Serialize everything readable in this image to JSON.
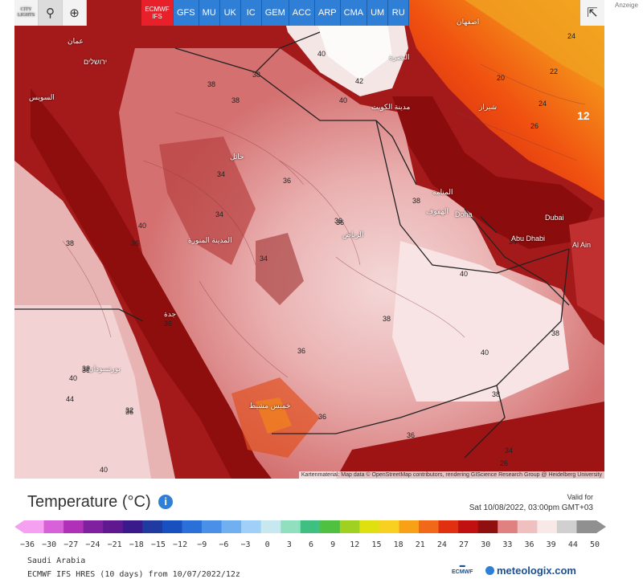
{
  "toolbar": {
    "reset_icon": "refresh-icon",
    "location_icon": "map-pin-icon",
    "zoom_icon": "zoom-icon",
    "city_line1": "CITY",
    "city_line2": "LIGHTS",
    "share_icon": "share-icon"
  },
  "models": [
    {
      "label": "ECMWF",
      "sub": "IFS",
      "selected": true
    },
    {
      "label": "GFS"
    },
    {
      "label": "MU"
    },
    {
      "label": "UK"
    },
    {
      "label": "IC"
    },
    {
      "label": "GEM"
    },
    {
      "label": "ACC"
    },
    {
      "label": "ARP"
    },
    {
      "label": "CMA"
    },
    {
      "label": "UM"
    },
    {
      "label": "RU"
    }
  ],
  "ad_label": "Anzeige",
  "map": {
    "credit": "Kartenmaterial: Map data © OpenStreetMap contributors, rendering GIScience Research Group @ Heidelberg University",
    "cities": {
      "doha": "Doha",
      "dubai": "Dubai",
      "abu_dhabi": "Abu Dhabi",
      "al_ain": "Al Ain",
      "riyadh": "الرياض",
      "medina": "المدينة المنورة",
      "kuwait": "مدينة الكويت",
      "hail": "حائل",
      "manama": "المنامة",
      "hofuf": "الهفوف",
      "basra": "البصرة",
      "shiraz": "شيراز",
      "isfahan": "اصفهان",
      "amman": "عمان",
      "jerusalem": "ירושלים",
      "suez": "السويس",
      "port_sudan": "بورتسودان",
      "jeddah": "جدة",
      "khamis": "خميس مشيط"
    },
    "isotherm_labels": [
      "38",
      "38",
      "36",
      "36",
      "34",
      "34",
      "36",
      "38",
      "40",
      "40",
      "38",
      "40",
      "38",
      "36",
      "34",
      "36",
      "38",
      "40",
      "42",
      "40",
      "38",
      "36",
      "26",
      "24",
      "22",
      "20",
      "12",
      "34",
      "40",
      "38",
      "36",
      "34",
      "32",
      "36",
      "38",
      "38",
      "40",
      "36",
      "44",
      "24",
      "26"
    ]
  },
  "legend": {
    "title": "Temperature",
    "unit": "(°C)",
    "info_icon": "info-icon",
    "valid_for_label": "Valid for",
    "valid_for_value": "Sat 10/08/2022, 03:00pm GMT+03",
    "ticks": [
      "−36",
      "−30",
      "−27",
      "−24",
      "−21",
      "−18",
      "−15",
      "−12",
      "−9",
      "−6",
      "−3",
      "0",
      "3",
      "6",
      "9",
      "12",
      "15",
      "18",
      "21",
      "24",
      "27",
      "30",
      "33",
      "36",
      "39",
      "44",
      "50"
    ],
    "colors": [
      "#f5a0f0",
      "#d860d8",
      "#b030b8",
      "#8020a0",
      "#601890",
      "#3a1a8a",
      "#1f3aa0",
      "#1850c0",
      "#2a70d8",
      "#4a90e8",
      "#70b0f0",
      "#a0d0f8",
      "#c8e8f0",
      "#90e0c0",
      "#40c080",
      "#50c040",
      "#a0d020",
      "#e0e010",
      "#f8d020",
      "#f8a018",
      "#f06818",
      "#e03010",
      "#c01010",
      "#901010",
      "#e08080",
      "#f0c0c0",
      "#f8e8e8",
      "#d0d0d0",
      "#909090"
    ],
    "region": "Saudi Arabia",
    "run": "ECMWF IFS HRES (10 days) from 10/07/2022/12z",
    "ecmwf_logo_text": "ECMWF",
    "meteologix_logo_text": "meteologix.com"
  }
}
